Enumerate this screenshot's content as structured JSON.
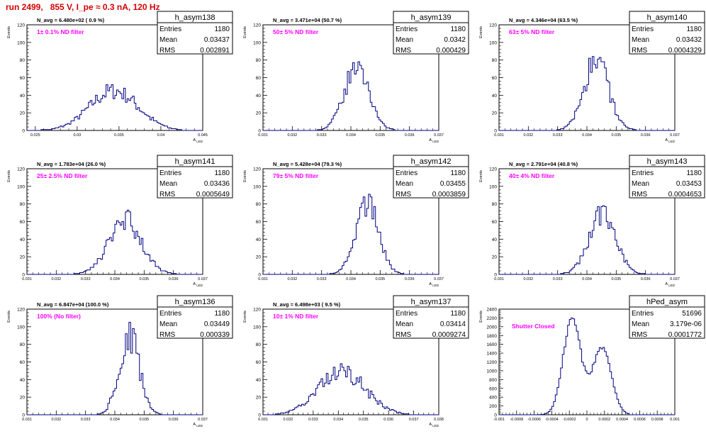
{
  "title": "run 2499,   855 V, I_pe ≈ 0.3 nA, 120 Hz",
  "colors": {
    "title": "#d40000",
    "filter_label": "#ff00ff",
    "histogram": "#000080"
  },
  "chart_data": [
    {
      "type": "histogram",
      "name": "h_asym138",
      "entries": "1180",
      "mean": "0.03437",
      "rms": "0.002891",
      "navg": "N_avg = 6.480e+02 ( 0.9 %)",
      "filter": "1± 0.1% ND filter",
      "xlabel": "A_LED",
      "ylabel": "Events",
      "xlim": [
        0.024,
        0.045
      ],
      "ylim": [
        0,
        120
      ],
      "xticks": [
        "0.025",
        "0.03",
        "0.035",
        "0.04",
        "0.045"
      ],
      "yticks": [
        "0",
        "20",
        "40",
        "60",
        "80",
        "100",
        "120"
      ],
      "mu": 0.03437,
      "sigma": 0.0029,
      "peak": 45,
      "xmin": 0.0255,
      "xmax": 0.0425
    },
    {
      "type": "histogram",
      "name": "h_asym139",
      "entries": "1180",
      "mean": "0.0342",
      "rms": "0.000429",
      "navg": "N_avg = 3.471e+04 (50.7 %)",
      "filter": "50± 5% ND filter",
      "xlabel": "A_LED",
      "ylabel": "Events",
      "xlim": [
        0.031,
        0.037
      ],
      "ylim": [
        0,
        120
      ],
      "xticks": [
        "0.031",
        "0.032",
        "0.033",
        "0.034",
        "0.035",
        "0.036",
        "0.037"
      ],
      "yticks": [
        "0",
        "20",
        "40",
        "60",
        "80",
        "100",
        "120"
      ],
      "mu": 0.0342,
      "sigma": 0.00043,
      "peak": 71,
      "xmin": 0.0328,
      "xmax": 0.0357
    },
    {
      "type": "histogram",
      "name": "h_asym140",
      "entries": "1180",
      "mean": "0.03432",
      "rms": "0.0004329",
      "navg": "N_avg = 4.346e+04 (63.5 %)",
      "filter": "63± 5% ND filter",
      "xlabel": "A_LED",
      "ylabel": "Events",
      "xlim": [
        0.031,
        0.037
      ],
      "ylim": [
        0,
        120
      ],
      "xticks": [
        "0.031",
        "0.032",
        "0.033",
        "0.034",
        "0.035",
        "0.036",
        "0.037"
      ],
      "yticks": [
        "0",
        "20",
        "40",
        "60",
        "80",
        "100",
        "120"
      ],
      "mu": 0.03432,
      "sigma": 0.00043,
      "peak": 78,
      "xmin": 0.0329,
      "xmax": 0.036
    },
    {
      "type": "histogram",
      "name": "h_asym141",
      "entries": "1180",
      "mean": "0.03436",
      "rms": "0.0005649",
      "navg": "N_avg = 1.783e+04 (26.0 %)",
      "filter": "25± 2.5% ND filter",
      "xlabel": "A_LED",
      "ylabel": "Events",
      "xlim": [
        0.031,
        0.037
      ],
      "ylim": [
        0,
        120
      ],
      "xticks": [
        "0.031",
        "0.032",
        "0.033",
        "0.034",
        "0.035",
        "0.036",
        "0.037"
      ],
      "yticks": [
        "0",
        "20",
        "40",
        "60",
        "80",
        "100",
        "120"
      ],
      "mu": 0.03436,
      "sigma": 0.00056,
      "peak": 61,
      "xmin": 0.0325,
      "xmax": 0.0364
    },
    {
      "type": "histogram",
      "name": "h_asym142",
      "entries": "1180",
      "mean": "0.03455",
      "rms": "0.0003859",
      "navg": "N_avg = 5.428e+04 (79.3 %)",
      "filter": "79± 5% ND filter",
      "xlabel": "A_LED",
      "ylabel": "Events",
      "xlim": [
        0.031,
        0.037
      ],
      "ylim": [
        0,
        120
      ],
      "xticks": [
        "0.031",
        "0.032",
        "0.033",
        "0.034",
        "0.035",
        "0.036",
        "0.037"
      ],
      "yticks": [
        "0",
        "20",
        "40",
        "60",
        "80",
        "100",
        "120"
      ],
      "mu": 0.03455,
      "sigma": 0.00039,
      "peak": 82,
      "xmin": 0.0331,
      "xmax": 0.0359
    },
    {
      "type": "histogram",
      "name": "h_asym143",
      "entries": "1180",
      "mean": "0.03453",
      "rms": "0.0004653",
      "navg": "N_avg = 2.791e+04 (40.8 %)",
      "filter": "40± 4% ND filter",
      "xlabel": "A_LED",
      "ylabel": "Events",
      "xlim": [
        0.031,
        0.037
      ],
      "ylim": [
        0,
        120
      ],
      "xticks": [
        "0.031",
        "0.032",
        "0.033",
        "0.034",
        "0.035",
        "0.036",
        "0.037"
      ],
      "yticks": [
        "0",
        "20",
        "40",
        "60",
        "80",
        "100",
        "120"
      ],
      "mu": 0.03453,
      "sigma": 0.00046,
      "peak": 67,
      "xmin": 0.033,
      "xmax": 0.0362
    },
    {
      "type": "histogram",
      "name": "h_asym136",
      "entries": "1180",
      "mean": "0.03449",
      "rms": "0.000339",
      "navg": "N_avg = 6.847e+04 (100.0 %)",
      "filter": "100% (No filter)",
      "xlabel": "A_LED",
      "ylabel": "Events",
      "xlim": [
        0.031,
        0.037
      ],
      "ylim": [
        0,
        120
      ],
      "xticks": [
        "0.031",
        "0.032",
        "0.033",
        "0.034",
        "0.035",
        "0.036",
        "0.037"
      ],
      "yticks": [
        "0",
        "20",
        "40",
        "60",
        "80",
        "100",
        "120"
      ],
      "mu": 0.03449,
      "sigma": 0.00034,
      "peak": 92,
      "xmin": 0.0331,
      "xmax": 0.0361
    },
    {
      "type": "histogram",
      "name": "h_asym137",
      "entries": "1180",
      "mean": "0.03414",
      "rms": "0.0009274",
      "navg": "N_avg = 6.498e+03 ( 9.5 %)",
      "filter": "10± 1% ND filter",
      "xlabel": "A_LED",
      "ylabel": "Events",
      "xlim": [
        0.031,
        0.038
      ],
      "ylim": [
        0,
        120
      ],
      "xticks": [
        "0.031",
        "0.032",
        "0.033",
        "0.034",
        "0.035",
        "0.036",
        "0.037",
        "0.038"
      ],
      "yticks": [
        "0",
        "20",
        "40",
        "60",
        "80",
        "100",
        "120"
      ],
      "mu": 0.03414,
      "sigma": 0.00093,
      "peak": 49,
      "xmin": 0.0315,
      "xmax": 0.0368
    },
    {
      "type": "histogram",
      "name": "hPed_asym",
      "entries": "51696",
      "mean": "3.179e-06",
      "rms": "0.0001772",
      "navg": "",
      "filter": "Shutter Closed",
      "xlabel": "",
      "ylabel": "Events",
      "xlim": [
        -0.001,
        0.001
      ],
      "ylim": [
        0,
        2400
      ],
      "xticks": [
        "-0.001",
        "-0.0008",
        "-0.0006",
        "-0.0004",
        "-0.0002",
        "0",
        "0.0002",
        "0.0004",
        "0.0006",
        "0.0008",
        "0.001"
      ],
      "yticks": [
        "0",
        "200",
        "400",
        "600",
        "800",
        "1000",
        "1200",
        "1400",
        "1600",
        "1800",
        "2000",
        "2200",
        "2400"
      ],
      "bimodal": [
        {
          "mu": -0.00017,
          "sigma": 0.0001,
          "peak": 2200
        },
        {
          "mu": 0.00017,
          "sigma": 0.000105,
          "peak": 1550
        }
      ],
      "xmin": -0.00058,
      "xmax": 0.00048
    }
  ]
}
